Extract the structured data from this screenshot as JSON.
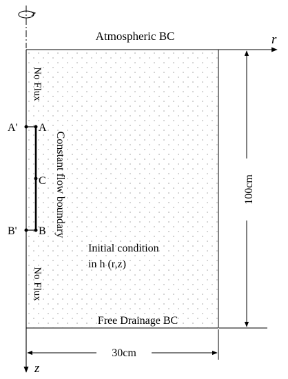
{
  "labels": {
    "top_bc": "Atmospheric BC",
    "bottom_bc": "Free Drainage BC",
    "no_flux_top": "No Flux",
    "no_flux_bottom": "No Flux",
    "constant_flow": "Constant flow boundary",
    "initial_line1": "Initial condition",
    "initial_line2": "in h (r,z)",
    "height_dim": "100cm",
    "width_dim": "30cm"
  },
  "axes": {
    "r_label": "r",
    "z_label": "z"
  },
  "points": {
    "a_prime": "A'",
    "a": "A",
    "c": "C",
    "b_prime": "B'",
    "b": "B"
  }
}
